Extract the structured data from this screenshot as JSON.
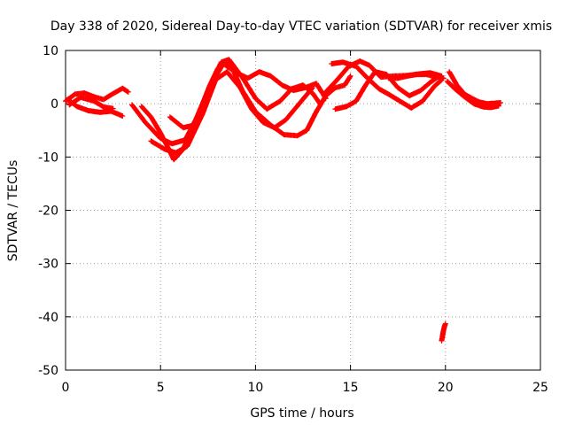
{
  "chart_data": {
    "type": "scatter",
    "title": "Day 338 of 2020, Sidereal Day-to-day VTEC variation (SDTVAR) for receiver xmis",
    "xlabel": "GPS time / hours",
    "ylabel": "SDTVAR / TECUs",
    "xlim": [
      0,
      25
    ],
    "ylim": [
      -50,
      10
    ],
    "xticks": [
      0,
      5,
      10,
      15,
      20,
      25
    ],
    "yticks": [
      10,
      0,
      -10,
      -20,
      -30,
      -40,
      -50
    ],
    "xtick_labels": [
      "0",
      "5",
      "10",
      "15",
      "20",
      "25"
    ],
    "ytick_labels": [
      "10",
      "0",
      "-10",
      "-20",
      "-30",
      "-40",
      "-50"
    ],
    "grid": true,
    "marker": "plus",
    "series": [
      {
        "name": "trace-a",
        "color": "#ff0000",
        "x": [
          0.0,
          0.5,
          1.0,
          1.5,
          2.0,
          2.5,
          3.0,
          3.3
        ],
        "y": [
          0.5,
          1.8,
          2.0,
          1.3,
          0.8,
          1.9,
          2.9,
          2.2
        ]
      },
      {
        "name": "trace-b",
        "color": "#ff0000",
        "x": [
          0.1,
          0.6,
          1.2,
          1.8,
          2.4,
          3.0
        ],
        "y": [
          0.8,
          -0.5,
          -1.3,
          -1.6,
          -1.4,
          -2.3
        ]
      },
      {
        "name": "trace-c",
        "color": "#ff0000",
        "x": [
          0.2,
          0.8,
          1.5,
          2.0,
          2.5
        ],
        "y": [
          -0.2,
          1.2,
          0.5,
          -0.6,
          -0.9
        ]
      },
      {
        "name": "trace-d",
        "color": "#ff0000",
        "x": [
          4.0,
          4.5,
          5.0,
          5.5,
          5.7,
          6.2,
          6.8,
          7.5,
          8.0,
          8.4,
          8.8,
          9.3,
          10.0,
          10.8,
          11.5,
          12.2,
          12.7,
          13.2,
          13.7,
          14.2,
          14.7,
          15.0
        ],
        "y": [
          -0.5,
          -2.5,
          -5.5,
          -9.0,
          -10.5,
          -8.5,
          -3.5,
          2.5,
          6.5,
          8.0,
          6.5,
          2.5,
          -1.5,
          -4.0,
          -5.8,
          -6.0,
          -5.0,
          -1.5,
          1.5,
          3.0,
          3.5,
          5.2
        ]
      },
      {
        "name": "trace-e",
        "color": "#ff0000",
        "x": [
          3.5,
          4.2,
          5.0,
          5.6,
          6.3,
          7.0,
          7.6,
          8.2,
          8.6,
          9.3,
          10.0,
          10.6,
          11.3,
          11.9,
          12.5,
          13.0,
          13.4
        ],
        "y": [
          -0.2,
          -3.5,
          -6.5,
          -7.5,
          -6.8,
          -2.0,
          3.5,
          7.8,
          8.3,
          5.0,
          1.0,
          -1.0,
          0.5,
          2.8,
          3.5,
          2.0,
          0.0
        ]
      },
      {
        "name": "trace-f",
        "color": "#ff0000",
        "x": [
          4.5,
          5.2,
          5.8,
          6.4,
          7.2,
          7.9,
          8.5,
          9.2,
          9.8,
          10.4,
          11.0,
          11.6,
          12.3,
          13.0
        ],
        "y": [
          -7.0,
          -8.5,
          -9.2,
          -8.0,
          -2.0,
          4.5,
          6.0,
          3.0,
          -1.0,
          -3.5,
          -4.5,
          -3.0,
          0.0,
          3.0
        ]
      },
      {
        "name": "trace-g",
        "color": "#ff0000",
        "x": [
          5.5,
          6.2,
          6.8,
          7.3,
          7.8,
          8.3,
          9.0,
          9.6,
          10.2,
          10.8,
          11.4,
          12.0,
          12.6,
          13.2,
          13.7
        ],
        "y": [
          -2.5,
          -4.5,
          -4.0,
          0.5,
          4.5,
          7.5,
          5.8,
          4.8,
          6.0,
          5.2,
          3.5,
          2.5,
          3.0,
          3.8,
          1.0
        ]
      },
      {
        "name": "trace-h",
        "color": "#ff0000",
        "x": [
          14.2,
          14.8,
          15.3,
          15.8,
          16.3,
          16.9,
          17.5,
          18.1,
          18.7,
          19.2,
          19.6,
          19.9
        ],
        "y": [
          -1.0,
          -0.5,
          0.5,
          3.5,
          6.0,
          5.5,
          3.0,
          1.5,
          2.5,
          4.0,
          5.0,
          4.8
        ]
      },
      {
        "name": "trace-i",
        "color": "#ff0000",
        "x": [
          13.6,
          14.3,
          14.9,
          15.5,
          16.0,
          16.6,
          17.3,
          18.0,
          18.6,
          19.2,
          19.8
        ],
        "y": [
          1.8,
          4.5,
          7.0,
          8.0,
          7.2,
          5.0,
          5.2,
          5.3,
          5.6,
          5.8,
          5.2
        ]
      },
      {
        "name": "trace-j",
        "color": "#ff0000",
        "x": [
          14.0,
          14.6,
          15.3,
          15.9,
          16.5,
          17.0,
          17.6,
          18.2,
          18.8,
          19.4,
          19.8
        ],
        "y": [
          7.5,
          7.8,
          7.0,
          4.8,
          2.8,
          1.8,
          0.5,
          -0.8,
          0.5,
          3.2,
          4.5
        ]
      },
      {
        "name": "trace-k",
        "color": "#ff0000",
        "x": [
          17.0,
          17.5,
          18.0,
          18.5,
          19.0,
          19.5
        ],
        "y": [
          4.8,
          4.8,
          5.2,
          5.5,
          5.5,
          5.0
        ]
      },
      {
        "name": "trace-l",
        "color": "#ff0000",
        "x": [
          20.2,
          20.6,
          21.0,
          21.4,
          21.8,
          22.2,
          22.6,
          22.9
        ],
        "y": [
          6.0,
          3.5,
          1.8,
          1.0,
          0.3,
          0.0,
          0.1,
          0.2
        ]
      },
      {
        "name": "trace-m",
        "color": "#ff0000",
        "x": [
          20.1,
          20.5,
          21.0,
          21.5,
          22.0,
          22.4,
          22.8
        ],
        "y": [
          4.2,
          2.8,
          1.3,
          0.0,
          -0.6,
          -0.7,
          -0.4
        ]
      },
      {
        "name": "trace-n",
        "color": "#ff0000",
        "x": [
          19.8,
          19.85,
          19.9,
          19.95,
          20.0
        ],
        "y": [
          -44.5,
          -43.5,
          -42.5,
          -41.8,
          -41.3
        ]
      }
    ]
  }
}
